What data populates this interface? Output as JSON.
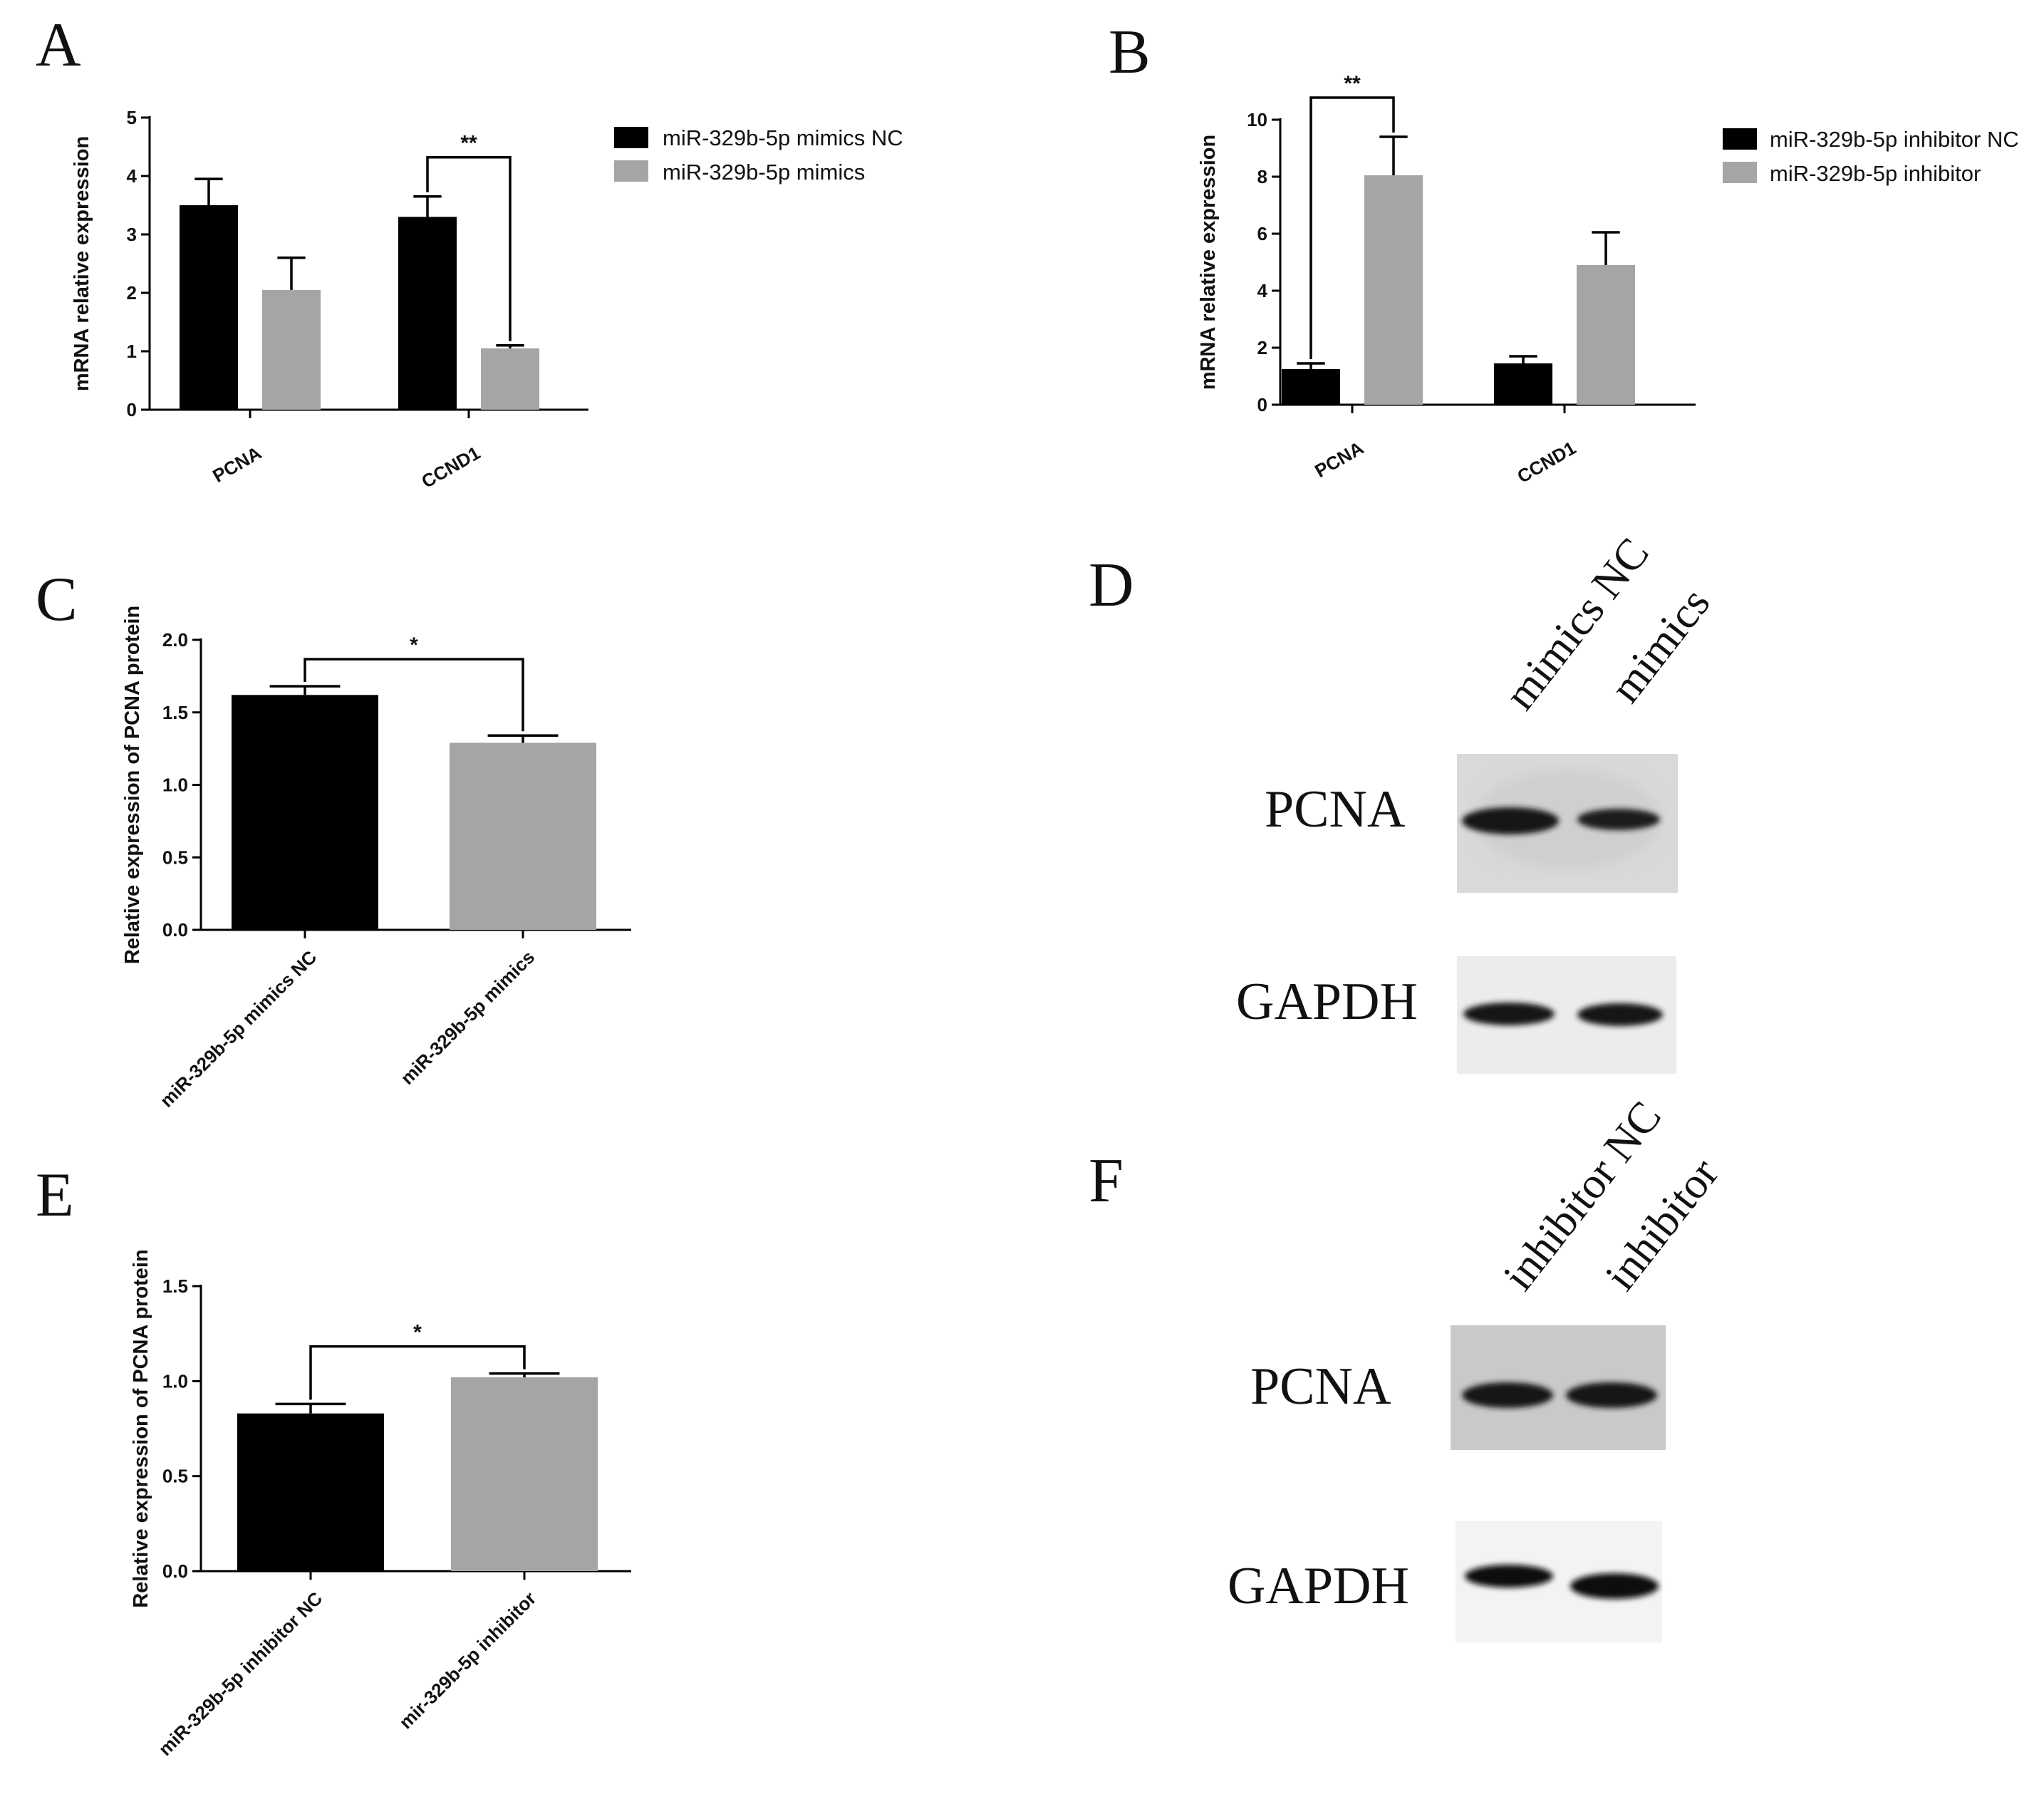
{
  "colors": {
    "dark": "#000000",
    "gray": "#a5a5a8",
    "axis": "#000000"
  },
  "chart_data": [
    {
      "panel": "A",
      "type": "bar",
      "ylabel": "mRNA relative expression",
      "ylim": [
        0,
        5
      ],
      "yticks": [
        "0",
        "1",
        "2",
        "3",
        "4",
        "5"
      ],
      "categories": [
        "PCNA",
        "CCND1"
      ],
      "series": [
        {
          "name": "miR-329b-5p mimics NC",
          "color": "dark",
          "values": [
            3.5,
            3.3
          ],
          "errors": [
            0.45,
            0.35
          ]
        },
        {
          "name": "miR-329b-5p mimics",
          "color": "gray",
          "values": [
            2.05,
            1.05
          ],
          "errors": [
            0.55,
            0.05
          ]
        }
      ],
      "significance": [
        {
          "category_index": 1,
          "label": "**"
        }
      ]
    },
    {
      "panel": "B",
      "type": "bar",
      "ylabel": "mRNA relative expression",
      "ylim": [
        0,
        10
      ],
      "yticks": [
        "0",
        "2",
        "4",
        "6",
        "8",
        "10"
      ],
      "categories": [
        "PCNA",
        "CCND1"
      ],
      "series": [
        {
          "name": "miR-329b-5p inhibitor NC",
          "color": "dark",
          "values": [
            1.25,
            1.45
          ],
          "errors": [
            0.2,
            0.25
          ]
        },
        {
          "name": "miR-329b-5p inhibitor",
          "color": "gray",
          "values": [
            8.05,
            4.9
          ],
          "errors": [
            1.35,
            1.15
          ]
        }
      ],
      "significance": [
        {
          "category_index": 0,
          "label": "**"
        }
      ]
    },
    {
      "panel": "C",
      "type": "bar",
      "ylabel": "Relative expression of PCNA protein",
      "ylim": [
        0,
        2.0
      ],
      "yticks": [
        "0.0",
        "0.5",
        "1.0",
        "1.5",
        "2.0"
      ],
      "categories": [
        "miR-329b-5p mimics NC",
        "miR-329b-5p mimics"
      ],
      "values": [
        1.62,
        1.29
      ],
      "errors": [
        0.06,
        0.05
      ],
      "colors": [
        "dark",
        "gray"
      ],
      "significance": [
        {
          "label": "*"
        }
      ]
    },
    {
      "panel": "E",
      "type": "bar",
      "ylabel": "Relative expression of PCNA protein",
      "ylim": [
        0,
        1.5
      ],
      "yticks": [
        "0.0",
        "0.5",
        "1.0",
        "1.5"
      ],
      "categories": [
        "miR-329b-5p inhibitor NC",
        "mir-329b-5p inhibitor"
      ],
      "values": [
        0.83,
        1.02
      ],
      "errors": [
        0.05,
        0.02
      ],
      "colors": [
        "dark",
        "gray"
      ],
      "significance": [
        {
          "label": "*"
        }
      ]
    }
  ],
  "blots": [
    {
      "panel": "D",
      "lanes": [
        "mimics NC",
        "mimics"
      ],
      "rows": [
        "PCNA",
        "GAPDH"
      ]
    },
    {
      "panel": "F",
      "lanes": [
        "inhibitor NC",
        "inhibitor"
      ],
      "rows": [
        "PCNA",
        "GAPDH"
      ]
    }
  ]
}
